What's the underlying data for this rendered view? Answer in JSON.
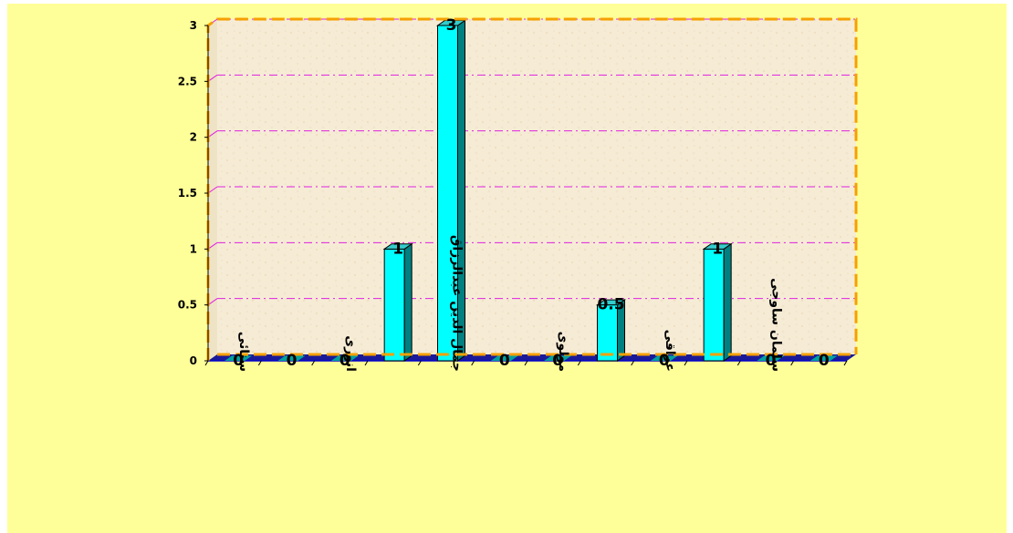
{
  "chart_data": {
    "type": "bar",
    "categories": [
      "سنائی",
      "",
      "انوری",
      "",
      "جمال الدین عبدالرزاق",
      "",
      "مولوی",
      "",
      "عراقی",
      "",
      "سلمان ساوجی",
      ""
    ],
    "values": [
      0,
      0,
      0,
      1,
      3,
      0,
      0,
      0.5,
      0,
      1,
      0,
      0
    ],
    "data_labels": [
      "0",
      "0",
      "0",
      "1",
      "3",
      "0",
      "0",
      "0.5",
      "0",
      "1",
      "0",
      "0"
    ],
    "yticks": [
      "0",
      "0.5",
      "1",
      "1.5",
      "2",
      "2.5",
      "3"
    ],
    "ylim": [
      0,
      3
    ],
    "grid": true,
    "legend": "none",
    "title": "",
    "xlabel": "",
    "ylabel": ""
  },
  "colors": {
    "background": "#ffff99",
    "plot_area": "#f6ecd6",
    "plot_border": "#f5a000",
    "gridline": "#e020e0",
    "bar_front": "#00ffff",
    "bar_side": "#008080",
    "bar_top": "#33cccc",
    "floor": "#1a1a99",
    "floor_edge": "#0000cc"
  }
}
